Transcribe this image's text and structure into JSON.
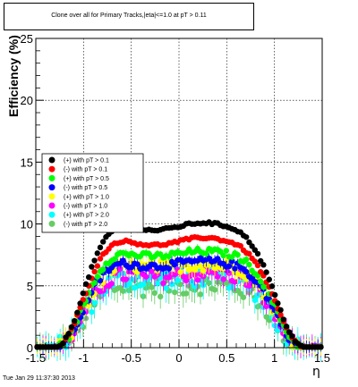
{
  "chart_data": {
    "type": "scatter",
    "title": "Clone  over all for Primary Tracks,|eta|<=1.0 at pT > 0.11",
    "xlabel": "η",
    "ylabel": "Efficiency (%)",
    "xlim": [
      -1.5,
      1.5
    ],
    "ylim": [
      0,
      25
    ],
    "grid": true,
    "legend_position": "center-left",
    "x_ticks": [
      "-1.5",
      "-1",
      "-0.5",
      "0",
      "0.5",
      "1",
      "1.5"
    ],
    "y_ticks": [
      "0",
      "5",
      "10",
      "15",
      "20",
      "25"
    ],
    "series": [
      {
        "name": "(+) with pT > 0.1",
        "color": "#000000",
        "plateau": 9.8,
        "edge": 1.3,
        "noise": 0.1,
        "yerr": 0.15,
        "ripple": 0.3
      },
      {
        "name": "(-) with pT > 0.1",
        "color": "#ff0000",
        "plateau": 8.6,
        "edge": 1.3,
        "noise": 0.1,
        "yerr": 0.15,
        "ripple": 0.3
      },
      {
        "name": "(+) with pT > 0.5",
        "color": "#00ff00",
        "plateau": 7.6,
        "edge": 1.55,
        "noise": 0.25,
        "yerr": 0.3,
        "ripple": 0.2
      },
      {
        "name": "(-) with pT > 0.5",
        "color": "#0000ff",
        "plateau": 6.8,
        "edge": 1.3,
        "noise": 0.3,
        "yerr": 0.45,
        "ripple": 0.2
      },
      {
        "name": "(+) with pT > 1.0",
        "color": "#ffff00",
        "plateau": 6.6,
        "edge": 1.2,
        "noise": 0.5,
        "yerr": 0.6,
        "ripple": 0.1
      },
      {
        "name": "(-) with pT > 1.0",
        "color": "#ff00ff",
        "plateau": 5.9,
        "edge": 1.2,
        "noise": 0.6,
        "yerr": 0.7,
        "ripple": 0.1
      },
      {
        "name": "(+) with pT > 2.0",
        "color": "#00ffff",
        "plateau": 5.6,
        "edge": 1.2,
        "noise": 0.8,
        "yerr": 0.9,
        "ripple": 0.1
      },
      {
        "name": "(-) with pT > 2.0",
        "color": "#66cc66",
        "plateau": 5.0,
        "edge": 1.2,
        "noise": 0.8,
        "yerr": 0.9,
        "ripple": 0.1
      }
    ]
  },
  "footer": {
    "timestamp": "Tue Jan 29 11:37:30 2013"
  }
}
